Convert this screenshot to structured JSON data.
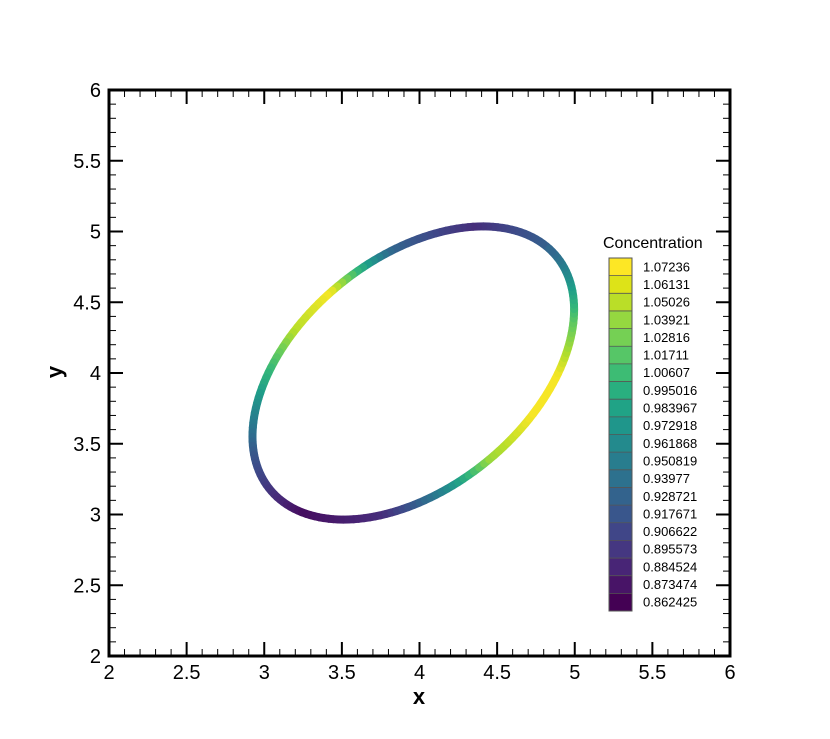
{
  "chart_data": {
    "type": "scatter",
    "title": "",
    "xlabel": "x",
    "ylabel": "y",
    "xlim": [
      2,
      6
    ],
    "ylim": [
      2,
      6
    ],
    "x_ticks": [
      "2",
      "2.5",
      "3",
      "3.5",
      "4",
      "4.5",
      "5",
      "5.5",
      "6"
    ],
    "y_ticks": [
      "2",
      "2.5",
      "3",
      "3.5",
      "4",
      "4.5",
      "5",
      "5.5",
      "6"
    ],
    "grid": false,
    "colormap": "viridis",
    "ring": {
      "description_values": "closed curve sampled by polar angle",
      "center": [
        3.96,
        4.0
      ],
      "semi_major": 1.24,
      "semi_minor": 0.78,
      "rotation_deg": 45,
      "concentration_by_angle_deg": [
        [
          0,
          1.07
        ],
        [
          20,
          1.02
        ],
        [
          45,
          0.93
        ],
        [
          70,
          0.89
        ],
        [
          100,
          0.93
        ],
        [
          135,
          1.07
        ],
        [
          160,
          1.05
        ],
        [
          185,
          0.99
        ],
        [
          210,
          0.92
        ],
        [
          235,
          0.87
        ],
        [
          260,
          0.89
        ],
        [
          285,
          0.96
        ],
        [
          310,
          1.04
        ],
        [
          340,
          1.07
        ],
        [
          360,
          1.07
        ]
      ]
    },
    "legend": {
      "title": "Concentration",
      "placement": "right",
      "levels": [
        "1.07236",
        "1.06131",
        "1.05026",
        "1.03921",
        "1.02816",
        "1.01711",
        "1.00607",
        "0.995016",
        "0.983967",
        "0.972918",
        "0.961868",
        "0.950819",
        "0.93977",
        "0.928721",
        "0.917671",
        "0.906622",
        "0.895573",
        "0.884524",
        "0.873474",
        "0.862425"
      ],
      "colors": [
        "#fde725",
        "#dde318",
        "#bade28",
        "#95d840",
        "#75d054",
        "#56c667",
        "#3dbc74",
        "#29af7f",
        "#20a386",
        "#1f968b",
        "#238a8d",
        "#287d8e",
        "#2d718e",
        "#33638d",
        "#39568c",
        "#404688",
        "#453781",
        "#482576",
        "#481467",
        "#440154"
      ]
    }
  }
}
